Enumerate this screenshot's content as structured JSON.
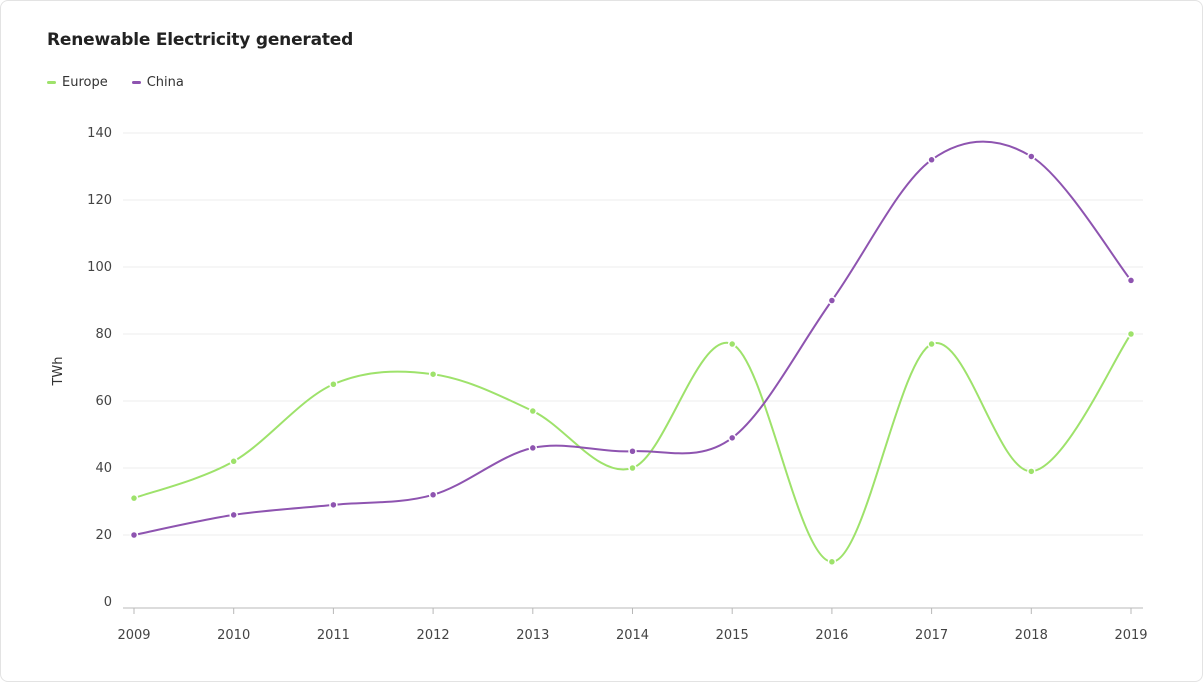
{
  "chart_data": {
    "type": "line",
    "title": "Renewable Electricity generated",
    "ylabel": "TWh",
    "xlabel": "",
    "x": [
      "2009",
      "2010",
      "2011",
      "2012",
      "2013",
      "2014",
      "2015",
      "2016",
      "2017",
      "2018",
      "2019"
    ],
    "ylim": [
      0,
      140
    ],
    "yticks": [
      0,
      20,
      40,
      60,
      80,
      100,
      120,
      140
    ],
    "grid": true,
    "legend_position": "top-left",
    "series": [
      {
        "name": "Europe",
        "color": "#9ee26b",
        "values": [
          31,
          42,
          65,
          68,
          57,
          40,
          77,
          12,
          77,
          39,
          80
        ]
      },
      {
        "name": "China",
        "color": "#8e54b0",
        "values": [
          20,
          26,
          29,
          32,
          46,
          45,
          49,
          90,
          132,
          133,
          96
        ]
      }
    ]
  }
}
